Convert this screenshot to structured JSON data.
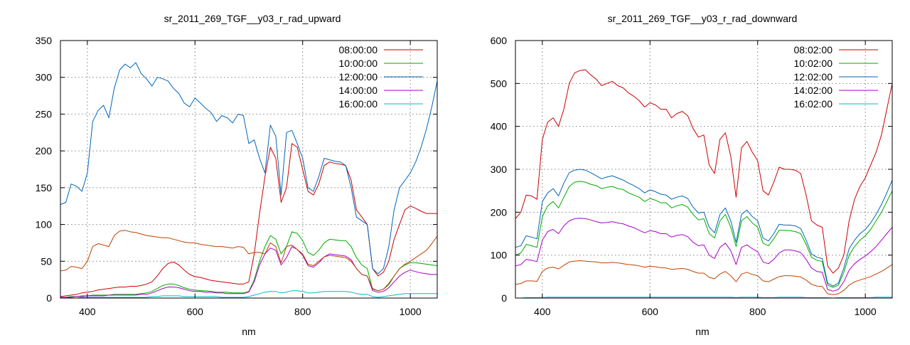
{
  "chart_data": [
    {
      "type": "line",
      "title": "sr_2011_269_TGF__y03_r_rad_upward",
      "xlabel": "nm",
      "ylabel": "",
      "xlim": [
        350,
        1050
      ],
      "ylim": [
        0,
        350
      ],
      "xticks": [
        400,
        600,
        800,
        1000
      ],
      "yticks": [
        0,
        50,
        100,
        150,
        200,
        250,
        300,
        350
      ],
      "grid": true,
      "legend_position": "top-right",
      "x": [
        350,
        360,
        370,
        380,
        390,
        400,
        410,
        420,
        430,
        440,
        450,
        460,
        470,
        480,
        490,
        500,
        510,
        520,
        530,
        540,
        550,
        560,
        570,
        580,
        590,
        600,
        610,
        620,
        630,
        640,
        650,
        660,
        670,
        680,
        690,
        700,
        710,
        720,
        730,
        740,
        750,
        760,
        770,
        780,
        790,
        800,
        810,
        820,
        830,
        840,
        850,
        860,
        870,
        880,
        890,
        900,
        910,
        920,
        930,
        940,
        950,
        960,
        970,
        980,
        990,
        1000,
        1010,
        1020,
        1030,
        1040,
        1050
      ],
      "series": [
        {
          "name": "08:00:00",
          "color": "#cc0000",
          "values": [
            2,
            3,
            4,
            5,
            7,
            8,
            9,
            11,
            12,
            13,
            14,
            15,
            15,
            16,
            16,
            17,
            19,
            22,
            30,
            40,
            47,
            49,
            45,
            38,
            32,
            29,
            28,
            26,
            24,
            23,
            22,
            21,
            20,
            19,
            19,
            22,
            60,
            115,
            165,
            205,
            190,
            130,
            150,
            210,
            205,
            175,
            145,
            140,
            155,
            180,
            185,
            183,
            182,
            180,
            160,
            120,
            110,
            100,
            40,
            30,
            35,
            50,
            80,
            100,
            120,
            125,
            122,
            118,
            115,
            115,
            115
          ]
        },
        {
          "name": "10:00:00",
          "color": "#00aa00",
          "values": [
            1,
            1,
            2,
            2,
            3,
            3,
            4,
            4,
            4,
            4,
            5,
            5,
            5,
            5,
            5,
            6,
            7,
            9,
            13,
            17,
            19,
            19,
            17,
            14,
            12,
            11,
            10,
            10,
            9,
            8,
            8,
            8,
            7,
            7,
            7,
            9,
            25,
            50,
            70,
            85,
            80,
            60,
            70,
            90,
            88,
            78,
            62,
            58,
            65,
            75,
            80,
            79,
            78,
            78,
            70,
            55,
            45,
            40,
            12,
            10,
            12,
            18,
            30,
            40,
            45,
            48,
            48,
            47,
            46,
            45,
            44
          ]
        },
        {
          "name": "12:00:00",
          "color": "#0066bb",
          "values": [
            127,
            130,
            155,
            152,
            145,
            170,
            240,
            255,
            262,
            245,
            285,
            310,
            318,
            313,
            320,
            305,
            298,
            288,
            300,
            298,
            295,
            285,
            278,
            265,
            260,
            272,
            265,
            258,
            252,
            240,
            248,
            245,
            238,
            250,
            248,
            210,
            215,
            190,
            170,
            235,
            220,
            140,
            225,
            228,
            210,
            190,
            150,
            145,
            165,
            190,
            188,
            186,
            185,
            180,
            150,
            110,
            105,
            100,
            40,
            33,
            40,
            70,
            120,
            150,
            160,
            170,
            185,
            205,
            230,
            260,
            295
          ]
        },
        {
          "name": "14:00:00",
          "color": "#aa00cc",
          "values": [
            1,
            1,
            1,
            2,
            2,
            3,
            3,
            3,
            3,
            4,
            4,
            4,
            4,
            4,
            4,
            5,
            5,
            7,
            10,
            13,
            15,
            15,
            14,
            12,
            10,
            9,
            9,
            8,
            8,
            7,
            7,
            6,
            6,
            6,
            6,
            8,
            22,
            45,
            60,
            68,
            65,
            45,
            55,
            70,
            66,
            58,
            44,
            42,
            48,
            56,
            60,
            59,
            58,
            57,
            52,
            40,
            32,
            30,
            10,
            8,
            9,
            14,
            22,
            30,
            35,
            38,
            36,
            34,
            33,
            32,
            32
          ]
        },
        {
          "name": "16:00:00",
          "color": "#00bbcc",
          "values": [
            0,
            0,
            0,
            0,
            1,
            1,
            1,
            1,
            1,
            1,
            1,
            1,
            1,
            1,
            1,
            1,
            1,
            2,
            2,
            3,
            3,
            3,
            3,
            2,
            2,
            2,
            2,
            2,
            2,
            2,
            1,
            1,
            1,
            1,
            1,
            2,
            4,
            6,
            8,
            9,
            9,
            7,
            8,
            10,
            10,
            9,
            7,
            7,
            8,
            9,
            9,
            9,
            9,
            9,
            8,
            6,
            5,
            5,
            2,
            1,
            2,
            3,
            4,
            5,
            6,
            6,
            6,
            6,
            6,
            6,
            6
          ]
        },
        {
          "name": "",
          "color": "#bb4400",
          "values": [
            37,
            38,
            43,
            42,
            40,
            50,
            70,
            74,
            72,
            70,
            85,
            91,
            92,
            90,
            89,
            87,
            85,
            84,
            83,
            82,
            82,
            80,
            78,
            76,
            75,
            75,
            73,
            72,
            71,
            70,
            70,
            69,
            68,
            70,
            69,
            60,
            62,
            62,
            60,
            75,
            70,
            48,
            70,
            72,
            66,
            60,
            46,
            44,
            50,
            56,
            58,
            57,
            56,
            55,
            50,
            40,
            32,
            30,
            13,
            10,
            12,
            20,
            30,
            40,
            46,
            50,
            55,
            60,
            65,
            74,
            84
          ]
        }
      ]
    },
    {
      "type": "line",
      "title": "sr_2011_269_TGF__y03_r_rad_downward",
      "xlabel": "nm",
      "ylabel": "",
      "xlim": [
        350,
        1050
      ],
      "ylim": [
        0,
        600
      ],
      "xticks": [
        400,
        600,
        800,
        1000
      ],
      "yticks": [
        0,
        100,
        200,
        300,
        400,
        500,
        600
      ],
      "grid": true,
      "legend_position": "top-right",
      "x": [
        350,
        360,
        370,
        380,
        390,
        400,
        410,
        420,
        430,
        440,
        450,
        460,
        470,
        480,
        490,
        500,
        510,
        520,
        530,
        540,
        550,
        560,
        570,
        580,
        590,
        600,
        610,
        620,
        630,
        640,
        650,
        660,
        670,
        680,
        690,
        700,
        710,
        720,
        730,
        740,
        750,
        760,
        770,
        780,
        790,
        800,
        810,
        820,
        830,
        840,
        850,
        860,
        870,
        880,
        890,
        900,
        910,
        920,
        930,
        940,
        950,
        960,
        970,
        980,
        990,
        1000,
        1010,
        1020,
        1030,
        1040,
        1050
      ],
      "series": [
        {
          "name": "08:02:00",
          "color": "#cc0000",
          "values": [
            185,
            200,
            240,
            238,
            230,
            370,
            410,
            420,
            400,
            440,
            500,
            525,
            530,
            532,
            520,
            510,
            495,
            500,
            505,
            495,
            490,
            478,
            470,
            460,
            445,
            455,
            450,
            440,
            440,
            420,
            430,
            435,
            425,
            395,
            375,
            380,
            310,
            290,
            370,
            385,
            330,
            235,
            350,
            365,
            340,
            320,
            250,
            240,
            270,
            305,
            300,
            300,
            298,
            290,
            240,
            180,
            170,
            165,
            75,
            58,
            70,
            100,
            180,
            230,
            260,
            280,
            310,
            340,
            380,
            440,
            500
          ]
        },
        {
          "name": "10:02:00",
          "color": "#00aa00",
          "values": [
            100,
            105,
            125,
            122,
            118,
            190,
            215,
            225,
            210,
            235,
            260,
            270,
            272,
            270,
            265,
            262,
            255,
            258,
            260,
            255,
            253,
            245,
            240,
            235,
            225,
            232,
            228,
            222,
            222,
            210,
            215,
            218,
            212,
            195,
            182,
            185,
            150,
            140,
            180,
            195,
            165,
            120,
            180,
            190,
            175,
            165,
            128,
            122,
            138,
            158,
            158,
            157,
            155,
            150,
            125,
            95,
            88,
            85,
            30,
            25,
            30,
            60,
            100,
            120,
            135,
            145,
            160,
            180,
            200,
            225,
            250
          ]
        },
        {
          "name": "12:02:00",
          "color": "#0066bb",
          "values": [
            118,
            122,
            145,
            142,
            138,
            225,
            245,
            255,
            238,
            268,
            292,
            298,
            300,
            298,
            292,
            285,
            278,
            282,
            285,
            280,
            275,
            268,
            262,
            255,
            245,
            252,
            248,
            242,
            240,
            230,
            235,
            238,
            232,
            212,
            198,
            200,
            165,
            152,
            195,
            210,
            180,
            130,
            195,
            205,
            190,
            180,
            140,
            133,
            150,
            172,
            170,
            170,
            168,
            162,
            135,
            103,
            95,
            92,
            35,
            28,
            35,
            70,
            115,
            135,
            150,
            160,
            175,
            195,
            218,
            245,
            275
          ]
        },
        {
          "name": "14:02:00",
          "color": "#aa00cc",
          "values": [
            75,
            78,
            90,
            88,
            85,
            135,
            155,
            160,
            150,
            168,
            180,
            185,
            186,
            185,
            182,
            178,
            175,
            176,
            178,
            175,
            173,
            168,
            164,
            158,
            152,
            157,
            155,
            150,
            150,
            142,
            146,
            148,
            143,
            130,
            122,
            124,
            100,
            92,
            118,
            128,
            110,
            78,
            118,
            124,
            115,
            108,
            84,
            80,
            90,
            105,
            112,
            112,
            110,
            106,
            90,
            70,
            62,
            60,
            20,
            16,
            20,
            38,
            65,
            80,
            90,
            98,
            108,
            120,
            135,
            150,
            165
          ]
        },
        {
          "name": "16:02:00",
          "color": "#00bbcc",
          "values": [
            0,
            0,
            1,
            1,
            1,
            1,
            2,
            2,
            2,
            2,
            2,
            2,
            2,
            2,
            2,
            2,
            2,
            2,
            2,
            2,
            2,
            2,
            2,
            2,
            2,
            2,
            2,
            2,
            2,
            2,
            2,
            2,
            2,
            2,
            2,
            2,
            2,
            2,
            2,
            2,
            2,
            1,
            2,
            2,
            2,
            2,
            1,
            1,
            1,
            2,
            2,
            2,
            2,
            2,
            1,
            1,
            1,
            1,
            1,
            0,
            1,
            1,
            1,
            1,
            1,
            1,
            1,
            2,
            2,
            2,
            2
          ]
        },
        {
          "name": "",
          "color": "#bb4400",
          "values": [
            32,
            34,
            40,
            40,
            39,
            62,
            70,
            72,
            68,
            76,
            84,
            86,
            87,
            86,
            85,
            84,
            82,
            82,
            83,
            82,
            80,
            78,
            77,
            75,
            72,
            74,
            73,
            71,
            70,
            67,
            68,
            69,
            67,
            62,
            58,
            58,
            48,
            45,
            56,
            62,
            52,
            38,
            56,
            60,
            55,
            52,
            40,
            38,
            44,
            50,
            52,
            52,
            51,
            49,
            42,
            32,
            28,
            27,
            10,
            8,
            10,
            18,
            30,
            38,
            42,
            46,
            50,
            56,
            62,
            70,
            78
          ]
        }
      ]
    }
  ]
}
